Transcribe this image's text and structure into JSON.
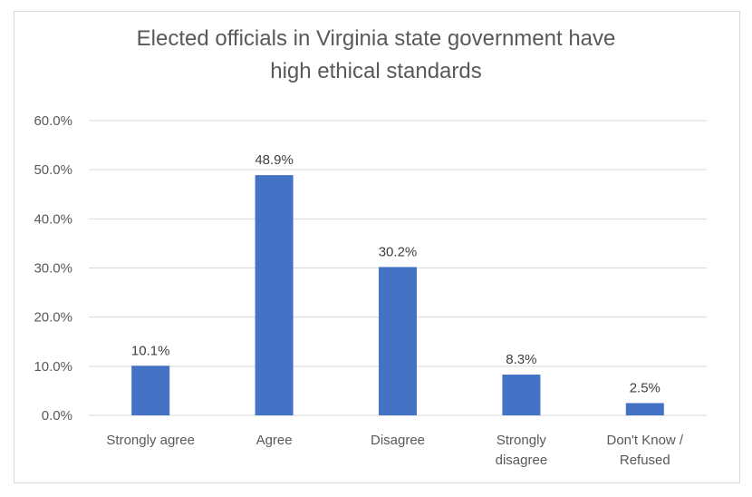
{
  "chart_data": {
    "type": "bar",
    "title": [
      "Elected officials in Virginia state government have",
      "high ethical standards"
    ],
    "categories": [
      [
        "Strongly agree"
      ],
      [
        "Agree"
      ],
      [
        "Disagree"
      ],
      [
        "Strongly",
        "disagree"
      ],
      [
        "Don't Know /",
        "Refused"
      ]
    ],
    "values": [
      10.1,
      48.9,
      30.2,
      8.3,
      2.5
    ],
    "data_labels": [
      "10.1%",
      "48.9%",
      "30.2%",
      "8.3%",
      "2.5%"
    ],
    "yticks": [
      "0.0%",
      "10.0%",
      "20.0%",
      "30.0%",
      "40.0%",
      "50.0%",
      "60.0%"
    ],
    "ylim": [
      0,
      60
    ],
    "xlabel": "",
    "ylabel": "",
    "grid": true,
    "bar_color": "#4472C4"
  }
}
